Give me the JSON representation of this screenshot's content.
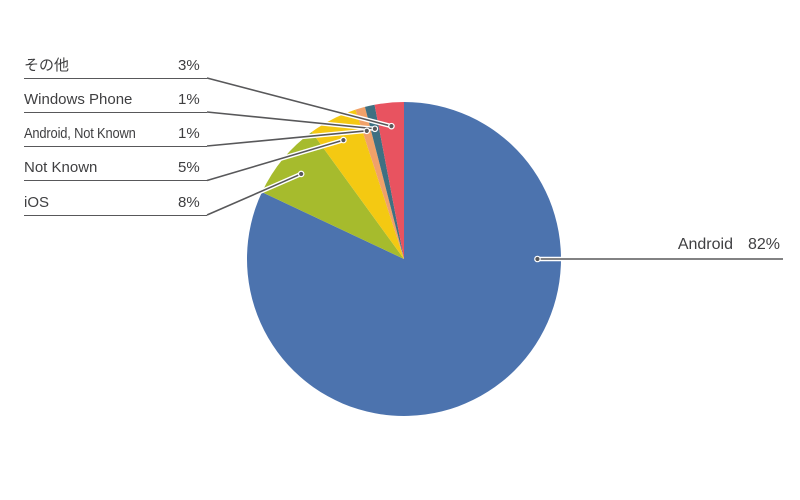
{
  "figure": {
    "background": "#ffffff",
    "text_color": "#3f3f41",
    "callout_line_color": "#58585a"
  },
  "chart_data": {
    "type": "pie",
    "title": "",
    "unit": "%",
    "start_angle_deg": 0,
    "direction": "clockwise",
    "legend_position": "left-callouts",
    "grid": false,
    "slices": [
      {
        "key": "android",
        "label": "Android",
        "value": 82,
        "pct_label": "82%",
        "color": "#4C73AE",
        "callout_side": "right"
      },
      {
        "key": "ios",
        "label": "iOS",
        "value": 8,
        "pct_label": "8%",
        "color": "#A6BB2D",
        "callout_side": "left"
      },
      {
        "key": "not-known",
        "label": "Not Known",
        "value": 5,
        "pct_label": "5%",
        "color": "#F4C912",
        "callout_side": "left"
      },
      {
        "key": "android-not-known",
        "label": "Android, Not Known",
        "value": 1,
        "pct_label": "1%",
        "color": "#F0A169",
        "callout_side": "left"
      },
      {
        "key": "windows-phone",
        "label": "Windows Phone",
        "value": 1,
        "pct_label": "1%",
        "color": "#3E7082",
        "callout_side": "left"
      },
      {
        "key": "others",
        "label": "その他",
        "value": 3,
        "pct_label": "3%",
        "color": "#E85360",
        "callout_side": "left"
      }
    ]
  }
}
